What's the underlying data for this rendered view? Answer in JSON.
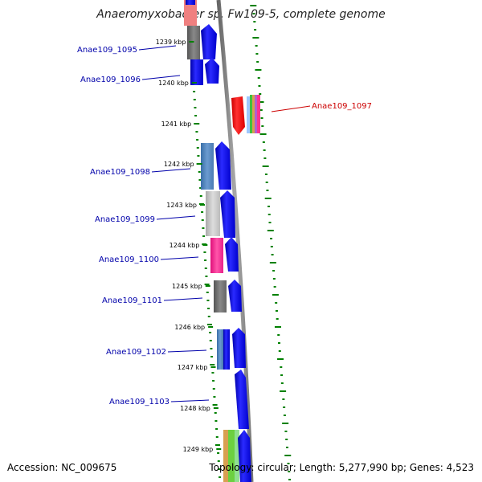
{
  "title": "Anaeromyxobacter sp. Fw109-5, complete genome",
  "accession": "Accession: NC_009675",
  "summary": "Topology: circular; Length: 5,277,990 bp; Genes: 4,523",
  "colors": {
    "forward": "#0000ee",
    "reverse": "#ff0000",
    "backbone": "#888888",
    "gc_dash": "#008000",
    "label_blue": "#0000aa",
    "label_red": "#cc0000"
  },
  "scale_labels": [
    "1239 kbp",
    "1240 kbp",
    "1241 kbp",
    "1242 kbp",
    "1243 kbp",
    "1244 kbp",
    "1245 kbp",
    "1246 kbp",
    "1247 kbp",
    "1248 kbp",
    "1249 kbp"
  ],
  "genes": [
    {
      "name": "Anae109_1095",
      "strand": "forward",
      "color": "#0000aa"
    },
    {
      "name": "Anae109_1096",
      "strand": "forward",
      "color": "#0000aa"
    },
    {
      "name": "Anae109_1097",
      "strand": "reverse",
      "color": "#cc0000"
    },
    {
      "name": "Anae109_1098",
      "strand": "forward",
      "color": "#0000aa"
    },
    {
      "name": "Anae109_1099",
      "strand": "forward",
      "color": "#0000aa"
    },
    {
      "name": "Anae109_1100",
      "strand": "forward",
      "color": "#0000aa"
    },
    {
      "name": "Anae109_1101",
      "strand": "forward",
      "color": "#0000aa"
    },
    {
      "name": "Anae109_1102",
      "strand": "forward",
      "color": "#0000aa"
    },
    {
      "name": "Anae109_1103",
      "strand": "forward",
      "color": "#0000aa"
    }
  ]
}
